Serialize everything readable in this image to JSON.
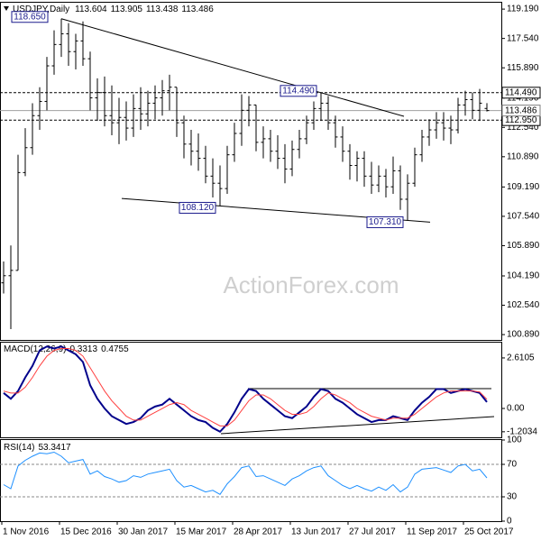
{
  "watermark": "ActionForex.com",
  "chart_data": [
    {
      "type": "ohlc",
      "title": "USDJPY,Daily",
      "color": "#000000",
      "open": [
        103.8,
        104.2,
        104.5,
        110,
        111.4,
        113.2,
        114,
        116,
        117.2,
        117.8,
        116.8,
        117.4,
        116.4,
        114.2,
        114.5,
        113.2,
        112.8,
        113.1,
        112.5,
        113.6,
        113.3,
        113.9,
        114.2,
        114.6,
        114.8,
        112.8,
        111.6,
        111.2,
        110.8,
        109.8,
        109.4,
        109.1,
        111,
        112.2,
        113.5,
        113.8,
        111.7,
        111.9,
        111.2,
        110.8,
        110.2,
        111.3,
        111.9,
        112.8,
        113.6,
        113.9,
        112.8,
        112,
        111.2,
        110.4,
        110.8,
        109.8,
        109.3,
        109.8,
        109.2,
        110.1,
        108.5,
        109.4,
        111,
        112,
        112.4,
        112.8,
        112.5,
        112.4,
        113.8,
        114.1,
        113.5,
        113.604
      ],
      "high": [
        105,
        105.9,
        111,
        112.5,
        113.9,
        114.8,
        116.5,
        118,
        118.65,
        118.4,
        117.8,
        118.5,
        116.8,
        115.3,
        115.4,
        114.9,
        114.2,
        114,
        114.4,
        114.8,
        114.6,
        114.9,
        115.2,
        115.5,
        114.8,
        113.2,
        112.4,
        112.2,
        111.5,
        110.8,
        110.4,
        111.5,
        112.8,
        114.4,
        114.3,
        113.8,
        112.6,
        112.4,
        112.1,
        111.6,
        111.8,
        112.4,
        113.2,
        114,
        114.49,
        114.3,
        113.2,
        112.6,
        111.6,
        111.2,
        111.2,
        110.6,
        110.4,
        110.2,
        110.9,
        110.4,
        109.9,
        111.4,
        112.4,
        113,
        113.4,
        113.4,
        113.2,
        114.2,
        114.6,
        114.5,
        114.7,
        113.905
      ],
      "low": [
        103.2,
        101.2,
        104.5,
        109.8,
        111,
        112.4,
        113.5,
        115.5,
        116.5,
        116,
        115.8,
        116,
        113.5,
        112.9,
        112.6,
        112.1,
        111.6,
        111.8,
        112,
        112.4,
        112.6,
        113,
        113.2,
        113.5,
        112,
        110.8,
        110.4,
        110.1,
        109.4,
        108.6,
        108.12,
        108.8,
        110.6,
        111.5,
        112.6,
        111.2,
        110.8,
        110.6,
        110.2,
        109.4,
        109.8,
        110.8,
        111.6,
        112.4,
        112.9,
        112.4,
        111.4,
        110.6,
        109.6,
        109.5,
        109.2,
        108.8,
        108.9,
        108.6,
        108.8,
        107.9,
        107.31,
        109.2,
        110.6,
        111.5,
        111.9,
        111.8,
        111.6,
        112.2,
        113.2,
        113,
        112.9,
        113.438
      ],
      "close": [
        104.2,
        104.5,
        110,
        111.4,
        113.2,
        114,
        116,
        117.2,
        117.8,
        116.8,
        117.4,
        116.4,
        114.2,
        114.5,
        113.2,
        112.8,
        113.1,
        112.5,
        113.6,
        113.3,
        113.9,
        114.2,
        114.6,
        114.8,
        112.8,
        111.6,
        111.2,
        110.8,
        109.8,
        109.4,
        109.1,
        111,
        112.2,
        113.5,
        113.8,
        111.7,
        111.9,
        111.2,
        110.8,
        110.2,
        111.3,
        111.9,
        112.8,
        113.6,
        113.9,
        112.8,
        112,
        111.2,
        110.4,
        110.8,
        109.8,
        109.3,
        109.8,
        109.2,
        110.1,
        108.5,
        109.4,
        111,
        112,
        112.4,
        112.8,
        112.5,
        112.4,
        113.8,
        114.1,
        113.5,
        113.9,
        113.486
      ],
      "ylim": [
        100.59,
        119.55
      ],
      "yticks": [
        {
          "value": 119.19,
          "label": "119.190"
        },
        {
          "value": 117.54,
          "label": "117.540"
        },
        {
          "value": 115.89,
          "label": "115.890"
        },
        {
          "value": 114.19,
          "label": "114.190"
        },
        {
          "value": 112.54,
          "label": "112.540"
        },
        {
          "value": 110.89,
          "label": "110.890"
        },
        {
          "value": 109.19,
          "label": "109.190"
        },
        {
          "value": 107.54,
          "label": "107.540"
        },
        {
          "value": 105.89,
          "label": "105.890"
        },
        {
          "value": 104.19,
          "label": "104.190"
        },
        {
          "value": 102.54,
          "label": "102.540"
        },
        {
          "value": 100.89,
          "label": "100.890"
        }
      ],
      "levels": [
        {
          "value": 114.49,
          "label": "114.490"
        },
        {
          "value": 112.95,
          "label": "112.950"
        }
      ],
      "annotations": [
        {
          "value": 118.65,
          "label": "118.650",
          "at": "high"
        },
        {
          "value": 114.49,
          "label": "114.490",
          "at": "high"
        },
        {
          "value": 108.12,
          "label": "108.120",
          "at": "low"
        },
        {
          "value": 107.31,
          "label": "107.310",
          "at": "low"
        }
      ]
    },
    {
      "type": "line",
      "title": "MACD(12,26,9)",
      "series": [
        {
          "color": "#00008b",
          "values": [
            0.8,
            0.5,
            0.9,
            1.6,
            2.2,
            3.0,
            3.2,
            3.1,
            3.2,
            3.0,
            2.8,
            2.4,
            1.2,
            0.5,
            0.0,
            -0.4,
            -0.6,
            -0.8,
            -0.7,
            -0.5,
            -0.1,
            0.1,
            0.2,
            0.5,
            0.2,
            -0.1,
            -0.4,
            -0.6,
            -0.7,
            -1.0,
            -1.2,
            -0.8,
            -0.2,
            0.5,
            1.0,
            0.9,
            0.5,
            0.2,
            -0.1,
            -0.4,
            -0.5,
            -0.2,
            0.1,
            0.6,
            1.0,
            0.9,
            0.5,
            0.3,
            0.0,
            -0.3,
            -0.5,
            -0.7,
            -0.6,
            -0.6,
            -0.4,
            -0.5,
            -0.6,
            -0.1,
            0.3,
            0.6,
            1.0,
            1.0,
            0.8,
            0.9,
            1.0,
            0.9,
            0.8,
            0.3313
          ]
        },
        {
          "color": "#ff4040",
          "values": [
            0.9,
            0.8,
            0.8,
            1.1,
            1.6,
            2.2,
            2.7,
            3.0,
            3.1,
            3.1,
            3.0,
            2.7,
            2.1,
            1.5,
            0.9,
            0.4,
            0.0,
            -0.4,
            -0.6,
            -0.6,
            -0.4,
            -0.2,
            0.0,
            0.2,
            0.3,
            0.2,
            -0.1,
            -0.3,
            -0.5,
            -0.7,
            -0.9,
            -0.9,
            -0.6,
            -0.1,
            0.4,
            0.7,
            0.7,
            0.5,
            0.2,
            -0.1,
            -0.3,
            -0.3,
            -0.2,
            0.1,
            0.5,
            0.8,
            0.7,
            0.5,
            0.3,
            0.0,
            -0.2,
            -0.4,
            -0.5,
            -0.6,
            -0.5,
            -0.5,
            -0.5,
            -0.3,
            0.0,
            0.3,
            0.6,
            0.8,
            0.9,
            0.9,
            0.9,
            0.9,
            0.85,
            0.4755
          ]
        }
      ],
      "ylim": [
        -1.49,
        3.4
      ],
      "yticks": [
        2.6105,
        {
          "value": 0,
          "label": "0.00"
        },
        -1.2034
      ]
    },
    {
      "type": "line",
      "title": "RSI(14)",
      "series": [
        {
          "color": "#1e90ff",
          "values": [
            45,
            40,
            68,
            75,
            80,
            84,
            83,
            85,
            80,
            72,
            74,
            76,
            58,
            62,
            55,
            52,
            48,
            50,
            56,
            54,
            58,
            60,
            62,
            64,
            50,
            42,
            44,
            40,
            36,
            38,
            33,
            46,
            55,
            66,
            68,
            55,
            56,
            52,
            48,
            44,
            52,
            56,
            62,
            66,
            68,
            56,
            50,
            44,
            40,
            44,
            40,
            37,
            42,
            38,
            45,
            36,
            42,
            58,
            64,
            65,
            66,
            63,
            60,
            68,
            70,
            62,
            64,
            53.3417
          ]
        }
      ],
      "ylim": [
        0,
        100
      ],
      "yticks": [
        0,
        30,
        70,
        100
      ],
      "levels": [
        70,
        30
      ],
      "categories": [
        "1 Nov 2016",
        null,
        null,
        null,
        null,
        null,
        null,
        null,
        "15 Dec 2016",
        null,
        null,
        null,
        null,
        null,
        null,
        null,
        "30 Jan 2017",
        null,
        null,
        null,
        null,
        null,
        null,
        null,
        "15 Mar 2017",
        null,
        null,
        null,
        null,
        null,
        null,
        null,
        "28 Apr 2017",
        null,
        null,
        null,
        null,
        null,
        null,
        null,
        "13 Jun 2017",
        null,
        null,
        null,
        null,
        null,
        null,
        null,
        "27 Jul 2017",
        null,
        null,
        null,
        null,
        null,
        null,
        null,
        "11 Sep 2017",
        null,
        null,
        null,
        null,
        null,
        null,
        null,
        "25 Oct 2017",
        null,
        null,
        null
      ]
    }
  ]
}
